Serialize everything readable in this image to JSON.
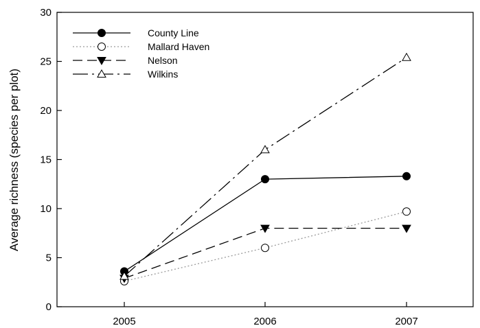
{
  "chart_data": {
    "type": "line",
    "title": "",
    "xlabel": "",
    "ylabel": "Average richness (species per plot)",
    "categories": [
      "2005",
      "2006",
      "2007"
    ],
    "ylim": [
      0,
      30
    ],
    "yticks": [
      "0",
      "5",
      "10",
      "15",
      "20",
      "25",
      "30"
    ],
    "grid": false,
    "legend_position": "top-left",
    "series": [
      {
        "name": "County Line",
        "values": [
          3.6,
          13.0,
          13.3
        ],
        "line_style": "solid",
        "marker": "filled-circle",
        "color": "#000000"
      },
      {
        "name": "Mallard Haven",
        "values": [
          2.6,
          6.0,
          9.7
        ],
        "line_style": "dotted",
        "marker": "open-circle",
        "color": "#9a9a9a"
      },
      {
        "name": "Nelson",
        "values": [
          2.9,
          8.0,
          8.0
        ],
        "line_style": "dashed",
        "marker": "filled-triangle-down",
        "color": "#000000"
      },
      {
        "name": "Wilkins",
        "values": [
          3.1,
          16.0,
          25.4
        ],
        "line_style": "dash-dot",
        "marker": "open-triangle-up",
        "color": "#000000"
      }
    ]
  }
}
